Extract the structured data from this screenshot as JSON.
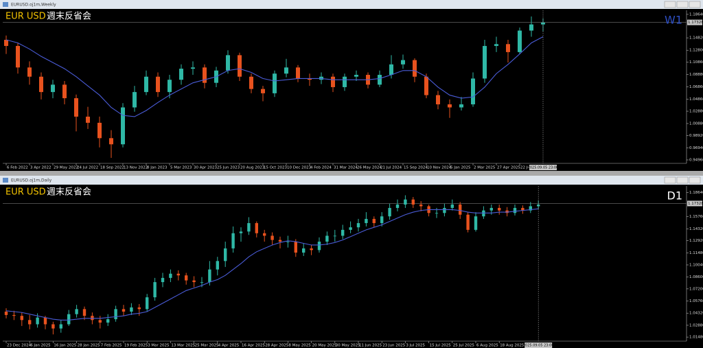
{
  "chart_data": [
    {
      "type": "candlestick",
      "window_title": "EURUSD.oj1m,Weekly",
      "overlay_title": "EUR USD",
      "overlay_subtitle": "週末反省会",
      "timeframe": "W1",
      "timeframe_color": "#2e4fc4",
      "grid": false,
      "colors": {
        "up": "#2fb8a6",
        "down": "#e8521e"
      },
      "ylim": [
        0.944,
        1.193
      ],
      "yticks": [
        {
          "value": 1.1864,
          "label": "1.18640"
        },
        {
          "value": 1.1482,
          "label": "1.14820"
        },
        {
          "value": 1.128,
          "label": "1.12800"
        },
        {
          "value": 1.1086,
          "label": "1.10860"
        },
        {
          "value": 1.0888,
          "label": "1.08880"
        },
        {
          "value": 1.0686,
          "label": "1.06860"
        },
        {
          "value": 1.0486,
          "label": "1.04860"
        },
        {
          "value": 1.0288,
          "label": "1.02880"
        },
        {
          "value": 1.0088,
          "label": "1.00880"
        },
        {
          "value": 0.9892,
          "label": "0.98920"
        },
        {
          "value": 0.9694,
          "label": "0.96940"
        },
        {
          "value": 0.9496,
          "label": "0.94960"
        }
      ],
      "xticks": [
        {
          "value": 0,
          "label": "6 Feb 2022"
        },
        {
          "value": 2,
          "label": "3 Apr 2022"
        },
        {
          "value": 4,
          "label": "29 May 2022"
        },
        {
          "value": 6,
          "label": "24 Jul 2022"
        },
        {
          "value": 8,
          "label": "18 Sep 2022"
        },
        {
          "value": 10,
          "label": "13 Nov 2022"
        },
        {
          "value": 12,
          "label": "8 Jan 2023"
        },
        {
          "value": 14,
          "label": "5 Mar 2023"
        },
        {
          "value": 16,
          "label": "30 Apr 2023"
        },
        {
          "value": 18,
          "label": "25 Jun 2023"
        },
        {
          "value": 20,
          "label": "20 Aug 2023"
        },
        {
          "value": 22,
          "label": "15 Oct 2023"
        },
        {
          "value": 24,
          "label": "10 Dec 2023"
        },
        {
          "value": 26,
          "label": "4 Feb 2024"
        },
        {
          "value": 28,
          "label": "31 Mar 2024"
        },
        {
          "value": 30,
          "label": "26 May 2024"
        },
        {
          "value": 32,
          "label": "21 Jul 2024"
        },
        {
          "value": 34,
          "label": "15 Sep 2024"
        },
        {
          "value": 36,
          "label": "10 Nov 2024"
        },
        {
          "value": 38,
          "label": "5 Jan 2025"
        },
        {
          "value": 40,
          "label": "2 Mar 2025"
        },
        {
          "value": 42,
          "label": "27 Apr 2025"
        },
        {
          "value": 44,
          "label": "22 Jun 2025"
        }
      ],
      "open": [
        1.145,
        1.135,
        1.1,
        1.085,
        1.06,
        1.072,
        1.05,
        1.02,
        1.01,
        0.985,
        0.975,
        1.035,
        1.06,
        1.085,
        1.06,
        1.08,
        1.098,
        1.1,
        1.075,
        1.095,
        1.12,
        1.085,
        1.065,
        1.058,
        1.09,
        1.1,
        1.082,
        1.08,
        1.085,
        1.068,
        1.085,
        1.088,
        1.072,
        1.088,
        1.105,
        1.112,
        1.085,
        1.055,
        1.04,
        1.035,
        1.04,
        1.082,
        1.135,
        1.138,
        1.125,
        1.16,
        1.17
      ],
      "high": [
        1.152,
        1.14,
        1.11,
        1.092,
        1.08,
        1.078,
        1.056,
        1.036,
        1.02,
        0.998,
        1.042,
        1.07,
        1.095,
        1.092,
        1.088,
        1.105,
        1.11,
        1.105,
        1.101,
        1.128,
        1.124,
        1.09,
        1.07,
        1.095,
        1.114,
        1.104,
        1.09,
        1.092,
        1.09,
        1.09,
        1.095,
        1.092,
        1.095,
        1.12,
        1.121,
        1.115,
        1.09,
        1.062,
        1.048,
        1.052,
        1.092,
        1.145,
        1.15,
        1.145,
        1.165,
        1.183,
        1.18
      ],
      "low": [
        1.122,
        1.09,
        1.072,
        1.048,
        1.05,
        1.04,
        0.996,
        1.0,
        0.97,
        0.953,
        0.97,
        1.028,
        1.055,
        1.052,
        1.05,
        1.072,
        1.088,
        1.066,
        1.068,
        1.09,
        1.078,
        1.058,
        1.045,
        1.052,
        1.084,
        1.076,
        1.07,
        1.073,
        1.06,
        1.062,
        1.078,
        1.066,
        1.068,
        1.082,
        1.098,
        1.076,
        1.05,
        1.032,
        1.018,
        1.03,
        1.036,
        1.075,
        1.125,
        1.108,
        1.122,
        1.15,
        1.158
      ],
      "close": [
        1.135,
        1.1,
        1.085,
        1.06,
        1.072,
        1.05,
        1.02,
        1.01,
        0.985,
        0.975,
        1.035,
        1.06,
        1.085,
        1.06,
        1.08,
        1.098,
        1.1,
        1.075,
        1.095,
        1.12,
        1.085,
        1.065,
        1.058,
        1.09,
        1.1,
        1.082,
        1.08,
        1.085,
        1.068,
        1.085,
        1.088,
        1.072,
        1.088,
        1.105,
        1.112,
        1.085,
        1.055,
        1.04,
        1.035,
        1.04,
        1.082,
        1.135,
        1.138,
        1.125,
        1.16,
        1.17,
        1.173
      ],
      "ma": {
        "color": "#4a5cd8",
        "values": [
          1.145,
          1.14,
          1.13,
          1.118,
          1.108,
          1.098,
          1.085,
          1.07,
          1.055,
          1.035,
          1.022,
          1.02,
          1.03,
          1.043,
          1.055,
          1.065,
          1.075,
          1.08,
          1.085,
          1.095,
          1.098,
          1.092,
          1.082,
          1.078,
          1.08,
          1.082,
          1.082,
          1.082,
          1.08,
          1.08,
          1.08,
          1.08,
          1.082,
          1.088,
          1.095,
          1.095,
          1.085,
          1.068,
          1.055,
          1.05,
          1.052,
          1.068,
          1.09,
          1.105,
          1.122,
          1.14,
          1.15
        ]
      },
      "last_price": {
        "value": 1.17328,
        "label": "1.17328"
      },
      "cursor_time": "2025.09.05 23:00"
    },
    {
      "type": "candlestick",
      "window_title": "EURUSD.oj1m,Daily",
      "overlay_title": "EUR USD",
      "overlay_subtitle": "週末反省会",
      "timeframe": "D1",
      "timeframe_color": "#ffffff",
      "grid": false,
      "colors": {
        "up": "#2fb8a6",
        "down": "#e8521e"
      },
      "ylim": [
        1.01,
        1.194
      ],
      "yticks": [
        {
          "value": 1.1864,
          "label": "1.18640"
        },
        {
          "value": 1.1576,
          "label": "1.15760"
        },
        {
          "value": 1.1432,
          "label": "1.14320"
        },
        {
          "value": 1.1292,
          "label": "1.12920"
        },
        {
          "value": 1.1148,
          "label": "1.11480"
        },
        {
          "value": 1.1004,
          "label": "1.10040"
        },
        {
          "value": 1.086,
          "label": "1.08600"
        },
        {
          "value": 1.072,
          "label": "1.07200"
        },
        {
          "value": 1.0576,
          "label": "1.05760"
        },
        {
          "value": 1.0432,
          "label": "1.04320"
        },
        {
          "value": 1.0288,
          "label": "1.02880"
        },
        {
          "value": 1.0148,
          "label": "1.01480"
        }
      ],
      "xticks": [
        {
          "value": 0,
          "label": "23 Dec 2024"
        },
        {
          "value": 3,
          "label": "6 Jan 2025"
        },
        {
          "value": 6,
          "label": "16 Jan 2025"
        },
        {
          "value": 9,
          "label": "28 Jan 2025"
        },
        {
          "value": 12,
          "label": "7 Feb 2025"
        },
        {
          "value": 15,
          "label": "19 Feb 2025"
        },
        {
          "value": 18,
          "label": "3 Mar 2025"
        },
        {
          "value": 21,
          "label": "13 Mar 2025"
        },
        {
          "value": 24,
          "label": "25 Mar 2025"
        },
        {
          "value": 27,
          "label": "4 Apr 2025"
        },
        {
          "value": 30,
          "label": "16 Apr 2025"
        },
        {
          "value": 33,
          "label": "28 Apr 2025"
        },
        {
          "value": 36,
          "label": "8 May 2025"
        },
        {
          "value": 39,
          "label": "20 May 2025"
        },
        {
          "value": 42,
          "label": "30 May 2025"
        },
        {
          "value": 45,
          "label": "11 Jun 2025"
        },
        {
          "value": 48,
          "label": "23 Jun 2025"
        },
        {
          "value": 51,
          "label": "3 Jul 2025"
        },
        {
          "value": 54,
          "label": "15 Jul 2025"
        },
        {
          "value": 57,
          "label": "25 Jul 2025"
        },
        {
          "value": 60,
          "label": "6 Aug 2025"
        },
        {
          "value": 63,
          "label": "18 Aug 2025"
        }
      ],
      "open": [
        1.045,
        1.041,
        1.04,
        1.035,
        1.03,
        1.038,
        1.03,
        1.025,
        1.03,
        1.042,
        1.048,
        1.04,
        1.035,
        1.032,
        1.036,
        1.048,
        1.045,
        1.05,
        1.048,
        1.062,
        1.08,
        1.085,
        1.09,
        1.088,
        1.082,
        1.08,
        1.08,
        1.095,
        1.105,
        1.12,
        1.138,
        1.14,
        1.15,
        1.138,
        1.135,
        1.13,
        1.128,
        1.128,
        1.115,
        1.12,
        1.118,
        1.128,
        1.135,
        1.135,
        1.142,
        1.145,
        1.15,
        1.155,
        1.15,
        1.158,
        1.168,
        1.172,
        1.178,
        1.172,
        1.17,
        1.162,
        1.162,
        1.168,
        1.172,
        1.16,
        1.142,
        1.158,
        1.165,
        1.168,
        1.165,
        1.162,
        1.168,
        1.165,
        1.17
      ],
      "high": [
        1.049,
        1.046,
        1.044,
        1.041,
        1.043,
        1.04,
        1.033,
        1.035,
        1.047,
        1.053,
        1.051,
        1.044,
        1.04,
        1.042,
        1.052,
        1.053,
        1.055,
        1.054,
        1.066,
        1.085,
        1.091,
        1.095,
        1.094,
        1.091,
        1.087,
        1.086,
        1.105,
        1.11,
        1.128,
        1.146,
        1.145,
        1.157,
        1.152,
        1.142,
        1.139,
        1.134,
        1.135,
        1.131,
        1.126,
        1.124,
        1.133,
        1.14,
        1.142,
        1.148,
        1.152,
        1.155,
        1.163,
        1.158,
        1.163,
        1.173,
        1.178,
        1.183,
        1.181,
        1.176,
        1.172,
        1.168,
        1.173,
        1.178,
        1.175,
        1.163,
        1.163,
        1.17,
        1.172,
        1.172,
        1.169,
        1.172,
        1.171,
        1.175,
        1.177
      ],
      "low": [
        1.037,
        1.035,
        1.028,
        1.024,
        1.026,
        1.024,
        1.018,
        1.02,
        1.028,
        1.038,
        1.035,
        1.03,
        1.025,
        1.028,
        1.033,
        1.04,
        1.041,
        1.04,
        1.045,
        1.058,
        1.074,
        1.08,
        1.082,
        1.077,
        1.074,
        1.074,
        1.076,
        1.088,
        1.098,
        1.115,
        1.128,
        1.136,
        1.133,
        1.128,
        1.124,
        1.12,
        1.121,
        1.11,
        1.111,
        1.112,
        1.115,
        1.124,
        1.128,
        1.131,
        1.138,
        1.14,
        1.146,
        1.145,
        1.146,
        1.154,
        1.164,
        1.168,
        1.168,
        1.164,
        1.158,
        1.156,
        1.158,
        1.165,
        1.155,
        1.139,
        1.14,
        1.155,
        1.16,
        1.16,
        1.158,
        1.159,
        1.161,
        1.162,
        1.166
      ],
      "close": [
        1.041,
        1.04,
        1.035,
        1.03,
        1.038,
        1.03,
        1.025,
        1.03,
        1.042,
        1.048,
        1.04,
        1.035,
        1.032,
        1.036,
        1.048,
        1.045,
        1.05,
        1.048,
        1.062,
        1.08,
        1.085,
        1.09,
        1.088,
        1.082,
        1.08,
        1.08,
        1.095,
        1.105,
        1.12,
        1.138,
        1.14,
        1.15,
        1.138,
        1.135,
        1.13,
        1.128,
        1.128,
        1.115,
        1.12,
        1.118,
        1.128,
        1.135,
        1.135,
        1.142,
        1.145,
        1.15,
        1.155,
        1.15,
        1.158,
        1.168,
        1.172,
        1.178,
        1.172,
        1.17,
        1.162,
        1.162,
        1.168,
        1.172,
        1.16,
        1.142,
        1.158,
        1.165,
        1.168,
        1.165,
        1.162,
        1.168,
        1.165,
        1.17,
        1.172
      ],
      "ma": {
        "color": "#4a5cd8",
        "values": [
          1.046,
          1.045,
          1.044,
          1.042,
          1.04,
          1.038,
          1.036,
          1.035,
          1.035,
          1.036,
          1.037,
          1.037,
          1.037,
          1.038,
          1.039,
          1.04,
          1.042,
          1.043,
          1.045,
          1.05,
          1.055,
          1.06,
          1.065,
          1.07,
          1.073,
          1.076,
          1.08,
          1.083,
          1.088,
          1.095,
          1.102,
          1.11,
          1.116,
          1.12,
          1.124,
          1.127,
          1.129,
          1.128,
          1.126,
          1.124,
          1.124,
          1.125,
          1.127,
          1.13,
          1.134,
          1.138,
          1.142,
          1.145,
          1.148,
          1.152,
          1.156,
          1.16,
          1.163,
          1.165,
          1.166,
          1.166,
          1.166,
          1.166,
          1.165,
          1.163,
          1.162,
          1.162,
          1.162,
          1.163,
          1.163,
          1.164,
          1.165,
          1.166,
          1.167
        ]
      },
      "last_price": {
        "value": 1.17328,
        "label": "1.17328"
      },
      "cursor_time": "2025.09.05 23:00"
    }
  ]
}
